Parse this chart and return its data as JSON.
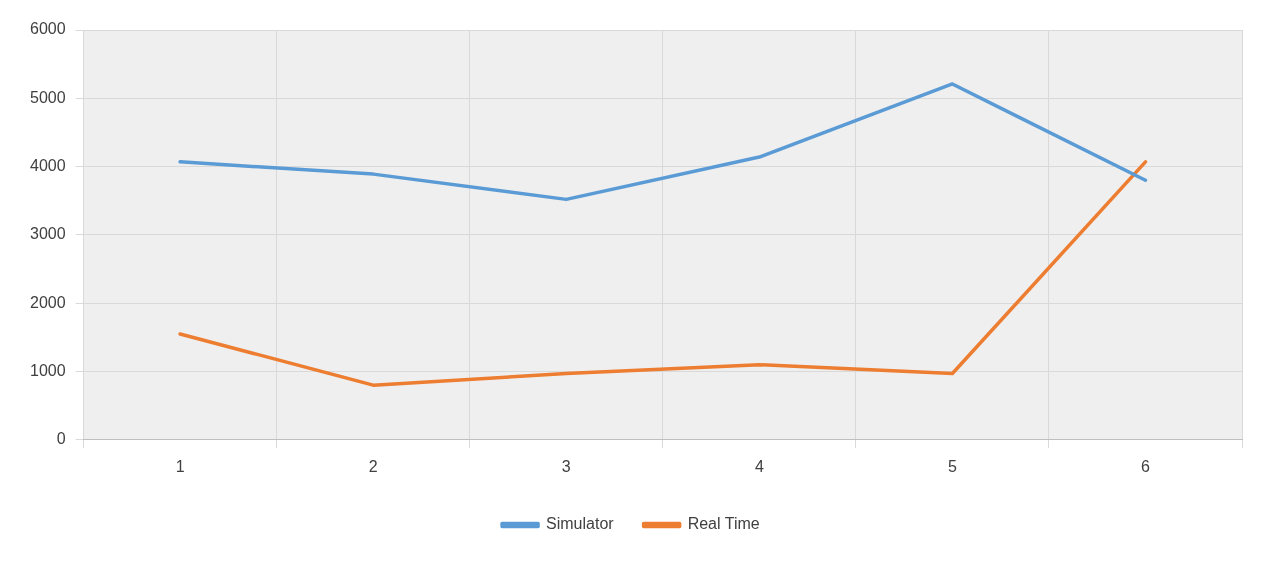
{
  "chart_data": {
    "type": "line",
    "categories": [
      "1",
      "2",
      "3",
      "4",
      "5",
      "6"
    ],
    "series": [
      {
        "name": "Simulator",
        "color": "#5b9bd5",
        "values": [
          4070,
          3890,
          3520,
          4140,
          5210,
          3800
        ]
      },
      {
        "name": "Real Time",
        "color": "#ed7d31",
        "values": [
          1550,
          800,
          970,
          1100,
          970,
          4070
        ]
      }
    ],
    "ylim": [
      0,
      6000
    ],
    "yticks": [
      0,
      1000,
      2000,
      3000,
      4000,
      5000,
      6000
    ],
    "grid": true,
    "legend": "bottom",
    "marker": "none",
    "line_style": "solid"
  }
}
